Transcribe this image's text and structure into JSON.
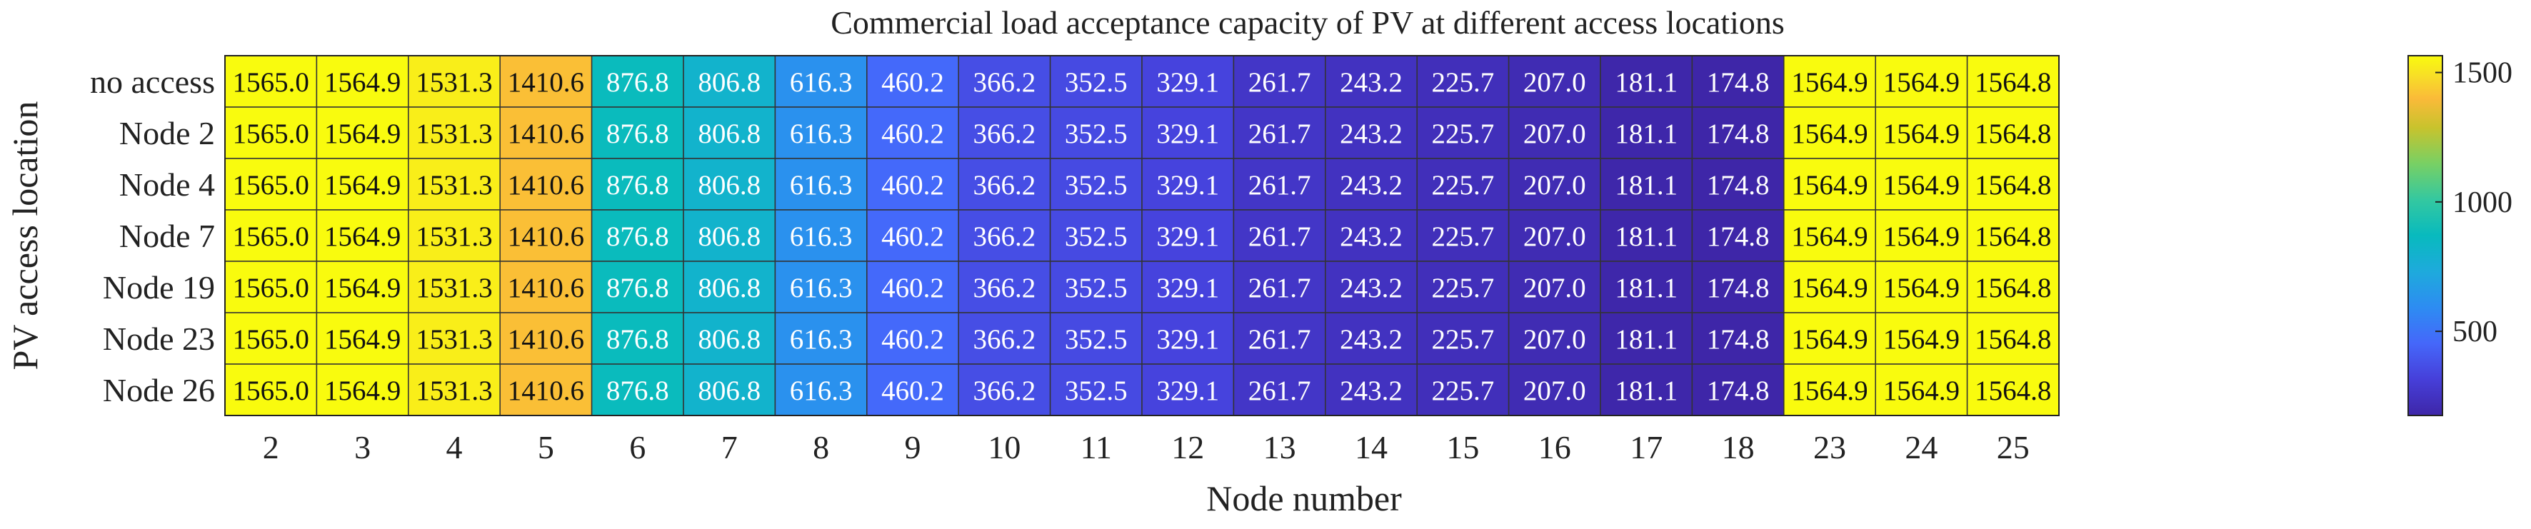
{
  "chart_data": {
    "type": "heatmap",
    "title": "Commercial load acceptance capacity of PV at different access locations",
    "xlabel": "Node number",
    "ylabel": "PV access location",
    "x_categories": [
      "2",
      "3",
      "4",
      "5",
      "6",
      "7",
      "8",
      "9",
      "10",
      "11",
      "12",
      "13",
      "14",
      "15",
      "16",
      "17",
      "18",
      "23",
      "24",
      "25"
    ],
    "y_categories": [
      "no access",
      "Node 2",
      "Node 4",
      "Node 7",
      "Node 19",
      "Node 23",
      "Node 26"
    ],
    "values": [
      [
        1565.0,
        1564.9,
        1531.3,
        1410.6,
        876.8,
        806.8,
        616.3,
        460.2,
        366.2,
        352.5,
        329.1,
        261.7,
        243.2,
        225.7,
        207.0,
        181.1,
        174.8,
        1564.9,
        1564.9,
        1564.8
      ],
      [
        1565.0,
        1564.9,
        1531.3,
        1410.6,
        876.8,
        806.8,
        616.3,
        460.2,
        366.2,
        352.5,
        329.1,
        261.7,
        243.2,
        225.7,
        207.0,
        181.1,
        174.8,
        1564.9,
        1564.9,
        1564.8
      ],
      [
        1565.0,
        1564.9,
        1531.3,
        1410.6,
        876.8,
        806.8,
        616.3,
        460.2,
        366.2,
        352.5,
        329.1,
        261.7,
        243.2,
        225.7,
        207.0,
        181.1,
        174.8,
        1564.9,
        1564.9,
        1564.8
      ],
      [
        1565.0,
        1564.9,
        1531.3,
        1410.6,
        876.8,
        806.8,
        616.3,
        460.2,
        366.2,
        352.5,
        329.1,
        261.7,
        243.2,
        225.7,
        207.0,
        181.1,
        174.8,
        1564.9,
        1564.9,
        1564.8
      ],
      [
        1565.0,
        1564.9,
        1531.3,
        1410.6,
        876.8,
        806.8,
        616.3,
        460.2,
        366.2,
        352.5,
        329.1,
        261.7,
        243.2,
        225.7,
        207.0,
        181.1,
        174.8,
        1564.9,
        1564.9,
        1564.8
      ],
      [
        1565.0,
        1564.9,
        1531.3,
        1410.6,
        876.8,
        806.8,
        616.3,
        460.2,
        366.2,
        352.5,
        329.1,
        261.7,
        243.2,
        225.7,
        207.0,
        181.1,
        174.8,
        1564.9,
        1564.9,
        1564.8
      ],
      [
        1565.0,
        1564.9,
        1531.3,
        1410.6,
        876.8,
        806.8,
        616.3,
        460.2,
        366.2,
        352.5,
        329.1,
        261.7,
        243.2,
        225.7,
        207.0,
        181.1,
        174.8,
        1564.9,
        1564.9,
        1564.8
      ]
    ],
    "colorbar": {
      "ticks": [
        500,
        1000,
        1500
      ],
      "range": [
        174.8,
        1565.0
      ],
      "colormap": "parula"
    },
    "grid": false,
    "legend": "colorbar-right"
  }
}
